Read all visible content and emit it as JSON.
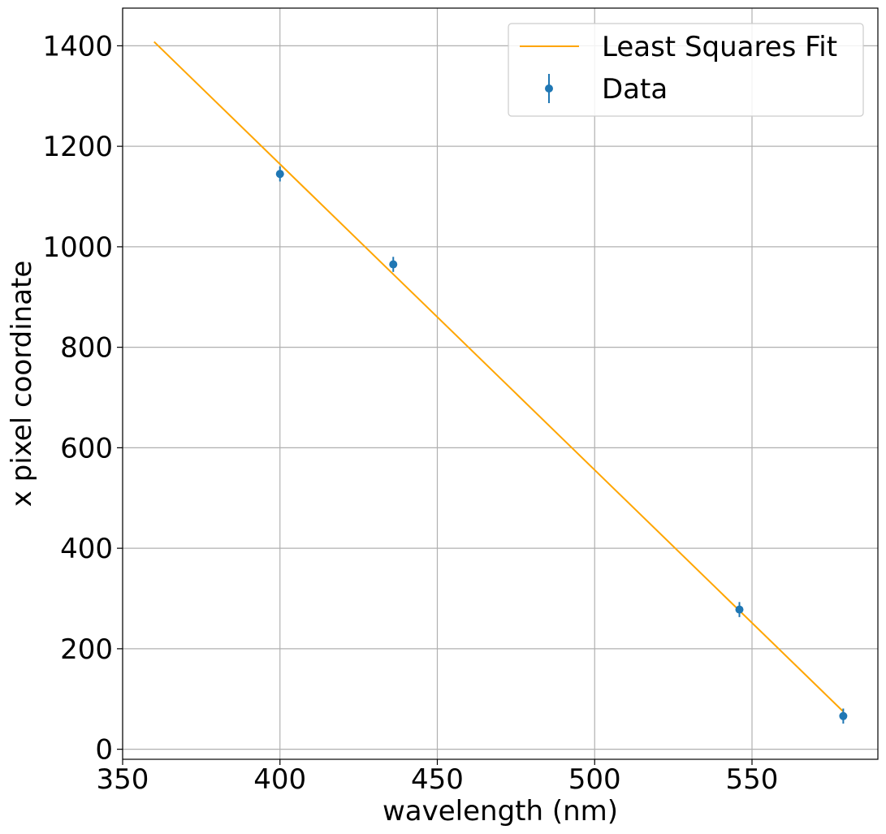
{
  "chart_data": {
    "type": "scatter",
    "xlabel": "wavelength (nm)",
    "ylabel": "x pixel coordinate",
    "xlim": [
      350,
      590
    ],
    "ylim": [
      -20,
      1475
    ],
    "xticks": [
      350,
      400,
      450,
      500,
      550
    ],
    "yticks": [
      0,
      200,
      400,
      600,
      800,
      1000,
      1200,
      1400
    ],
    "grid": true,
    "legend_position": "top-right",
    "series": [
      {
        "name": "Least Squares Fit",
        "kind": "line",
        "color": "#FFA500",
        "x": [
          360,
          579
        ],
        "y": [
          1408,
          75
        ]
      },
      {
        "name": "Data",
        "kind": "errorbar",
        "color": "#1F77B4",
        "x": [
          400,
          436,
          546,
          579
        ],
        "y": [
          1145,
          965,
          278,
          66
        ],
        "yerr": [
          15,
          15,
          15,
          15
        ]
      }
    ]
  }
}
